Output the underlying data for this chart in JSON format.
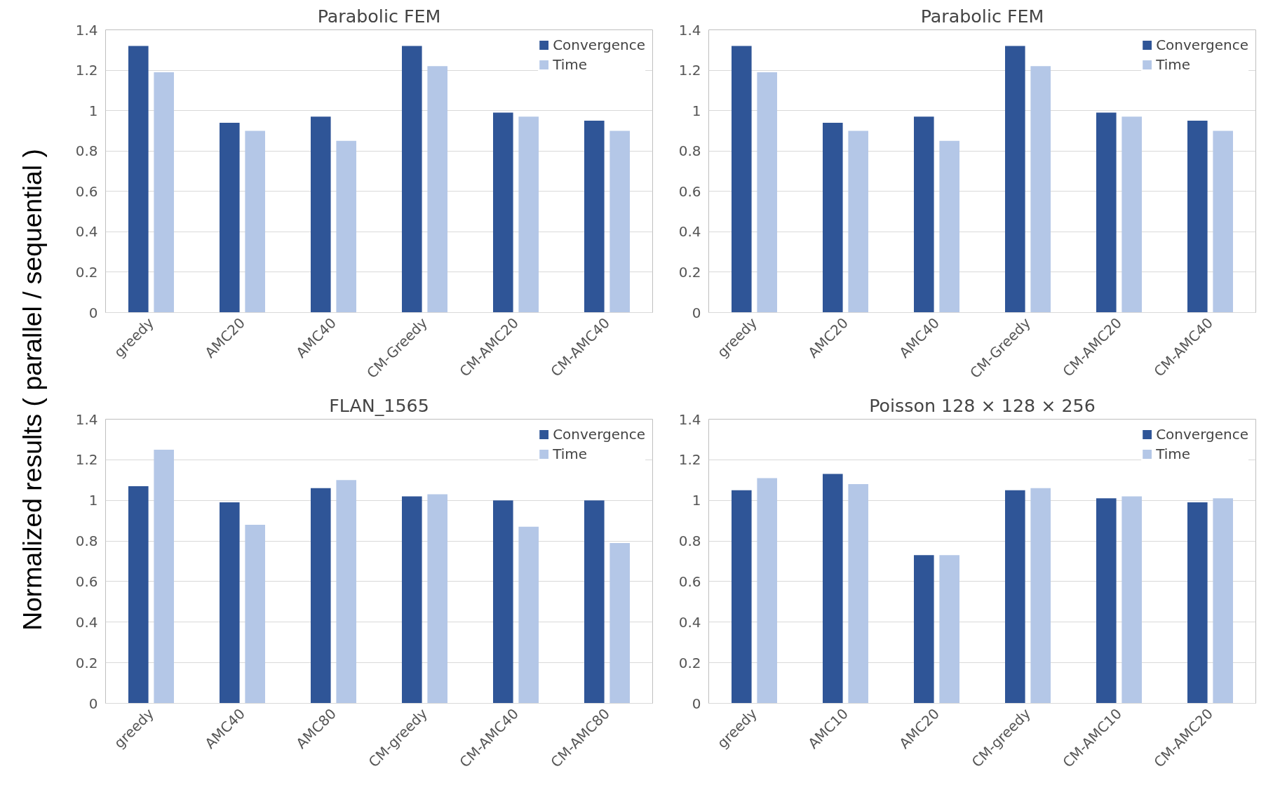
{
  "chart_data": [
    {
      "type": "bar",
      "title": "Parabolic FEM",
      "ylabel": "Normalized results ( parallel / sequential )",
      "categories": [
        "greedy",
        "AMC20",
        "AMC40",
        "CM-Greedy",
        "CM-AMC20",
        "CM-AMC40"
      ],
      "series": [
        {
          "name": "Convergence",
          "color": "#2f5597",
          "values": [
            1.32,
            0.94,
            0.97,
            1.32,
            0.99,
            0.95
          ]
        },
        {
          "name": "Time",
          "color": "#b4c7e7",
          "values": [
            1.19,
            0.9,
            0.85,
            1.22,
            0.97,
            0.9
          ]
        }
      ],
      "ylim": [
        0,
        1.4
      ],
      "yticks": [
        0,
        0.2,
        0.4,
        0.6,
        0.8,
        1,
        1.2,
        1.4
      ],
      "grid": "y",
      "legend": "top right"
    },
    {
      "type": "bar",
      "title": "Parabolic FEM",
      "categories": [
        "greedy",
        "AMC20",
        "AMC40",
        "CM-Greedy",
        "CM-AMC20",
        "CM-AMC40"
      ],
      "series": [
        {
          "name": "Convergence",
          "color": "#2f5597",
          "values": [
            1.32,
            0.94,
            0.97,
            1.32,
            0.99,
            0.95
          ]
        },
        {
          "name": "Time",
          "color": "#b4c7e7",
          "values": [
            1.19,
            0.9,
            0.85,
            1.22,
            0.97,
            0.9
          ]
        }
      ],
      "ylim": [
        0,
        1.4
      ],
      "yticks": [
        0,
        0.2,
        0.4,
        0.6,
        0.8,
        1,
        1.2,
        1.4
      ],
      "grid": "y",
      "legend": "top right"
    },
    {
      "type": "bar",
      "title": "FLAN_1565",
      "categories": [
        "greedy",
        "AMC40",
        "AMC80",
        "CM-greedy",
        "CM-AMC40",
        "CM-AMC80"
      ],
      "series": [
        {
          "name": "Convergence",
          "color": "#2f5597",
          "values": [
            1.07,
            0.99,
            1.06,
            1.02,
            1.0,
            1.0
          ]
        },
        {
          "name": "Time",
          "color": "#b4c7e7",
          "values": [
            1.25,
            0.88,
            1.1,
            1.03,
            0.87,
            0.79
          ]
        }
      ],
      "ylim": [
        0,
        1.4
      ],
      "yticks": [
        0,
        0.2,
        0.4,
        0.6,
        0.8,
        1,
        1.2,
        1.4
      ],
      "grid": "y",
      "legend": "top right"
    },
    {
      "type": "bar",
      "title": "Poisson 128 × 128 × 256",
      "categories": [
        "greedy",
        "AMC10",
        "AMC20",
        "CM-greedy",
        "CM-AMC10",
        "CM-AMC20"
      ],
      "series": [
        {
          "name": "Convergence",
          "color": "#2f5597",
          "values": [
            1.05,
            1.13,
            0.73,
            1.05,
            1.01,
            0.99
          ]
        },
        {
          "name": "Time",
          "color": "#b4c7e7",
          "values": [
            1.11,
            1.08,
            0.73,
            1.06,
            1.02,
            1.01
          ]
        }
      ],
      "ylim": [
        0,
        1.4
      ],
      "yticks": [
        0,
        0.2,
        0.4,
        0.6,
        0.8,
        1,
        1.2,
        1.4
      ],
      "grid": "y",
      "legend": "top right"
    }
  ]
}
